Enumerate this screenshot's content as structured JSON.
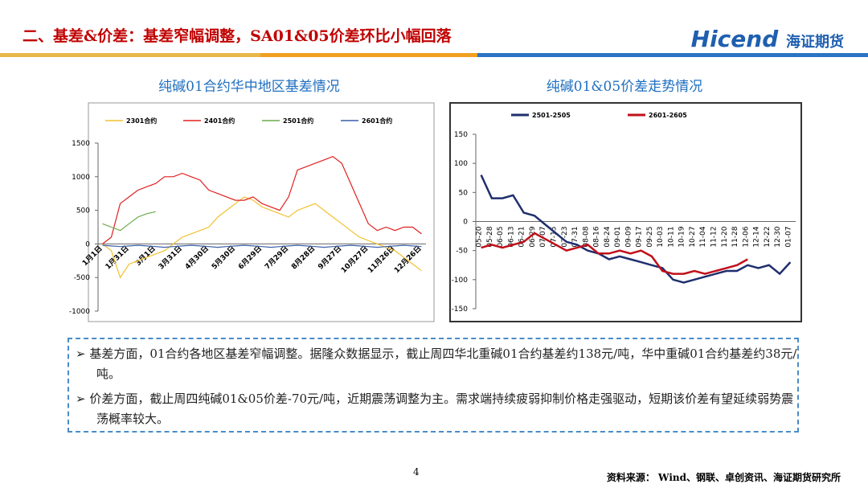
{
  "header": {
    "title": "二、基差&价差：基差窄幅调整，SA01&05价差环比小幅回落",
    "logo": "Hicend",
    "logo_cn": "海证期货"
  },
  "chart_data": [
    {
      "type": "line",
      "title": "纯碱01合约华中地区基差情况",
      "categories": [
        "1月1日",
        null,
        null,
        "1月31日",
        null,
        null,
        "3月1日",
        null,
        null,
        "3月31日",
        null,
        null,
        "4月30日",
        null,
        null,
        "5月30日",
        null,
        null,
        "6月29日",
        null,
        null,
        "7月29日",
        null,
        null,
        "8月28日",
        null,
        null,
        "9月27日",
        null,
        null,
        "10月27日",
        null,
        null,
        "11月26日",
        null,
        null,
        "12月26日"
      ],
      "series": [
        {
          "name": "2301合约",
          "color": "#f2c12e",
          "values": [
            0,
            -100,
            -500,
            -300,
            -250,
            -200,
            -150,
            -100,
            0,
            100,
            150,
            200,
            250,
            400,
            500,
            600,
            700,
            650,
            550,
            500,
            450,
            400,
            500,
            550,
            600,
            500,
            400,
            300,
            200,
            100,
            50,
            0,
            -50,
            -100,
            -200,
            -300,
            -400
          ]
        },
        {
          "name": "2401合约",
          "color": "#e02020",
          "values": [
            0,
            100,
            600,
            700,
            800,
            850,
            900,
            1000,
            1000,
            1050,
            1000,
            950,
            800,
            750,
            700,
            650,
            650,
            700,
            600,
            550,
            500,
            700,
            1100,
            1150,
            1200,
            1250,
            1300,
            1200,
            900,
            600,
            300,
            200,
            250,
            200,
            250,
            250,
            150
          ]
        },
        {
          "name": "2501合约",
          "color": "#6aaa4a",
          "values": [
            300,
            250,
            200,
            300,
            400,
            450,
            480,
            null,
            null,
            null,
            null,
            null,
            null,
            null,
            null,
            null,
            null,
            null,
            null,
            null,
            null,
            null,
            null,
            null,
            null,
            null,
            null,
            null,
            null,
            null,
            null,
            null,
            null,
            null,
            null,
            null,
            null
          ]
        },
        {
          "name": "2601合约",
          "color": "#3a5fa8",
          "values": [
            -20,
            -30,
            -40,
            -30,
            -20,
            -30,
            -40,
            -50,
            -40,
            -30,
            -20,
            -30,
            -40,
            -50,
            -40,
            -30,
            -20,
            -30,
            -40,
            -50,
            -40,
            -30,
            -20,
            -30,
            -40,
            -50,
            -40,
            -30,
            -20,
            -30,
            -40,
            -50,
            -40,
            -30,
            -20,
            -30,
            -40
          ]
        }
      ],
      "ylim": [
        -1000,
        1500
      ],
      "yticks": [
        -1000,
        -500,
        0,
        500,
        1000,
        1500
      ]
    },
    {
      "type": "line",
      "title": "纯碱01&05价差走势情况",
      "categories": [
        "05-20",
        "05-28",
        "06-05",
        "06-13",
        "06-21",
        "06-29",
        "07-07",
        "07-15",
        "07-23",
        "07-31",
        "08-08",
        "08-16",
        "08-24",
        "09-01",
        "09-09",
        "09-17",
        "09-25",
        "10-03",
        "10-11",
        "10-19",
        "10-27",
        "11-04",
        "11-12",
        "11-20",
        "11-28",
        "12-06",
        "12-14",
        "12-22",
        "12-30",
        "01-07"
      ],
      "series": [
        {
          "name": "2501-2505",
          "color": "#1f2f6e",
          "values": [
            80,
            40,
            40,
            45,
            15,
            10,
            -5,
            -20,
            -35,
            -40,
            -50,
            -55,
            -65,
            -60,
            -65,
            -70,
            -75,
            -80,
            -100,
            -105,
            -100,
            -95,
            -90,
            -85,
            -85,
            -75,
            -80,
            -75,
            -90,
            -70
          ]
        },
        {
          "name": "2601-2605",
          "color": "#c0101a",
          "values": [
            -45,
            -40,
            -45,
            -40,
            -35,
            -20,
            -30,
            -40,
            -50,
            -45,
            -40,
            -55,
            -55,
            -50,
            -55,
            -50,
            -60,
            -85,
            -90,
            -90,
            -85,
            -90,
            -85,
            -80,
            -75,
            -65,
            null,
            null,
            null,
            null
          ]
        }
      ],
      "ylim": [
        -150,
        150
      ],
      "yticks": [
        -150,
        -100,
        -50,
        0,
        50,
        100,
        150
      ]
    }
  ],
  "bullets": [
    "基差方面，01合约各地区基差窄幅调整。据隆众数据显示，截止周四华北重碱01合约基差约138元/吨，华中重碱01合约基差约38元/吨。",
    "价差方面，截止周四纯碱01&05价差-70元/吨，近期震荡调整为主。需求端持续疲弱抑制价格走强驱动，短期该价差有望延续弱势震荡概率较大。"
  ],
  "page_number": "4",
  "source": "资料来源：  Wind、钢联、卓创资讯、海证期货研究所"
}
